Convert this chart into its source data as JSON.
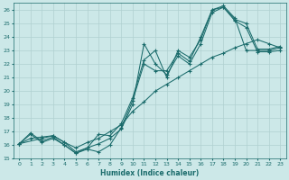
{
  "xlabel": "Humidex (Indice chaleur)",
  "ylabel": "",
  "xlim": [
    -0.5,
    23.5
  ],
  "ylim": [
    15,
    26.5
  ],
  "xticks": [
    0,
    1,
    2,
    3,
    4,
    5,
    6,
    7,
    8,
    9,
    10,
    11,
    12,
    13,
    14,
    15,
    16,
    17,
    18,
    19,
    20,
    21,
    22,
    23
  ],
  "yticks": [
    15,
    16,
    17,
    18,
    19,
    20,
    21,
    22,
    23,
    24,
    25,
    26
  ],
  "bg_color": "#cce8e8",
  "line_color": "#1a6b6b",
  "grid_color": "#b0d0d0",
  "series": [
    {
      "x": [
        0,
        1,
        2,
        3,
        4,
        5,
        6,
        7,
        8,
        9,
        10,
        11,
        12,
        13,
        14,
        15,
        16,
        17,
        18,
        19,
        20,
        21,
        22,
        23
      ],
      "y": [
        16.1,
        16.5,
        16.6,
        16.7,
        16.2,
        15.8,
        16.2,
        16.5,
        17.0,
        17.5,
        18.5,
        19.2,
        20.0,
        20.5,
        21.0,
        21.5,
        22.0,
        22.5,
        22.8,
        23.2,
        23.5,
        23.8,
        23.5,
        23.2
      ]
    },
    {
      "x": [
        0,
        1,
        2,
        3,
        4,
        5,
        6,
        7,
        8,
        9,
        10,
        11,
        12,
        13,
        14,
        15,
        16,
        17,
        18,
        19,
        20,
        21,
        22,
        23
      ],
      "y": [
        16.1,
        16.8,
        16.2,
        16.5,
        16.0,
        15.4,
        15.8,
        16.1,
        16.5,
        17.2,
        19.0,
        23.5,
        22.0,
        21.2,
        22.6,
        22.0,
        23.5,
        25.8,
        26.2,
        25.2,
        24.7,
        22.9,
        22.9,
        23.0
      ]
    },
    {
      "x": [
        0,
        1,
        2,
        3,
        4,
        5,
        6,
        7,
        8,
        9,
        10,
        11,
        12,
        13,
        14,
        15,
        16,
        17,
        18,
        19,
        20,
        21,
        22,
        23
      ],
      "y": [
        16.1,
        16.9,
        16.3,
        16.6,
        16.0,
        15.4,
        15.7,
        15.5,
        16.0,
        17.3,
        19.3,
        22.0,
        21.5,
        21.5,
        22.8,
        22.2,
        24.0,
        26.0,
        26.3,
        25.4,
        23.0,
        23.0,
        23.0,
        23.2
      ]
    },
    {
      "x": [
        0,
        2,
        3,
        4,
        5,
        6,
        7,
        8,
        9,
        10,
        11,
        12,
        13,
        14,
        15,
        16,
        17,
        18,
        19,
        20,
        21,
        22,
        23
      ],
      "y": [
        16.1,
        16.5,
        16.7,
        16.2,
        15.5,
        15.8,
        16.8,
        16.7,
        17.6,
        19.5,
        22.3,
        23.0,
        21.0,
        23.0,
        22.5,
        23.8,
        26.0,
        26.2,
        25.3,
        25.0,
        23.1,
        23.1,
        23.3
      ]
    }
  ]
}
